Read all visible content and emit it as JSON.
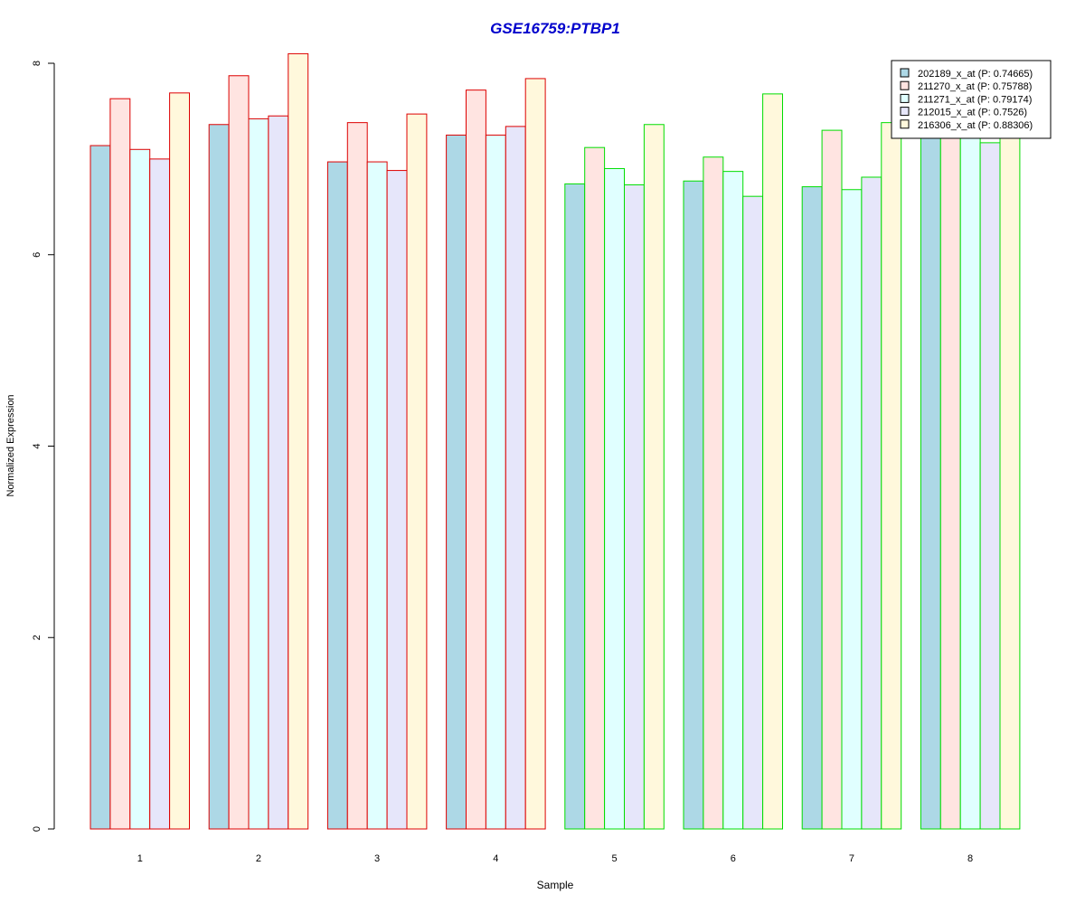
{
  "chart_data": {
    "type": "bar",
    "title": "GSE16759:PTBP1",
    "xlabel": "Sample",
    "ylabel": "Normalized Expression",
    "categories": [
      "1",
      "2",
      "3",
      "4",
      "5",
      "6",
      "7",
      "8"
    ],
    "yticks": [
      "0",
      "2",
      "4",
      "6",
      "8"
    ],
    "ylim": [
      0,
      8
    ],
    "series": [
      {
        "name": "202189_x_at (P: 0.74665)",
        "fill": "#add8e6",
        "values": [
          7.14,
          7.36,
          6.97,
          7.25,
          6.74,
          6.77,
          6.71,
          7.24
        ]
      },
      {
        "name": "211270_x_at (P: 0.75788)",
        "fill": "#ffe4e1",
        "values": [
          7.63,
          7.87,
          7.38,
          7.72,
          7.12,
          7.02,
          7.3,
          7.25
        ]
      },
      {
        "name": "211271_x_at (P: 0.79174)",
        "fill": "#e0ffff",
        "values": [
          7.1,
          7.42,
          6.97,
          7.25,
          6.9,
          6.87,
          6.68,
          7.22
        ]
      },
      {
        "name": "212015_x_at (P: 0.7526)",
        "fill": "#e6e6fa",
        "values": [
          7.0,
          7.45,
          6.88,
          7.34,
          6.73,
          6.61,
          6.81,
          7.17
        ]
      },
      {
        "name": "216306_x_at (P: 0.88306)",
        "fill": "#fff8dc",
        "values": [
          7.69,
          8.1,
          7.47,
          7.84,
          7.36,
          7.68,
          7.38,
          7.22
        ]
      }
    ],
    "group_border_colors": [
      "#dd0000",
      "#dd0000",
      "#dd0000",
      "#dd0000",
      "#00dd00",
      "#00dd00",
      "#00dd00",
      "#00dd00"
    ],
    "title_color": "#0000cc",
    "legend_position": "top-right",
    "grid": false
  }
}
